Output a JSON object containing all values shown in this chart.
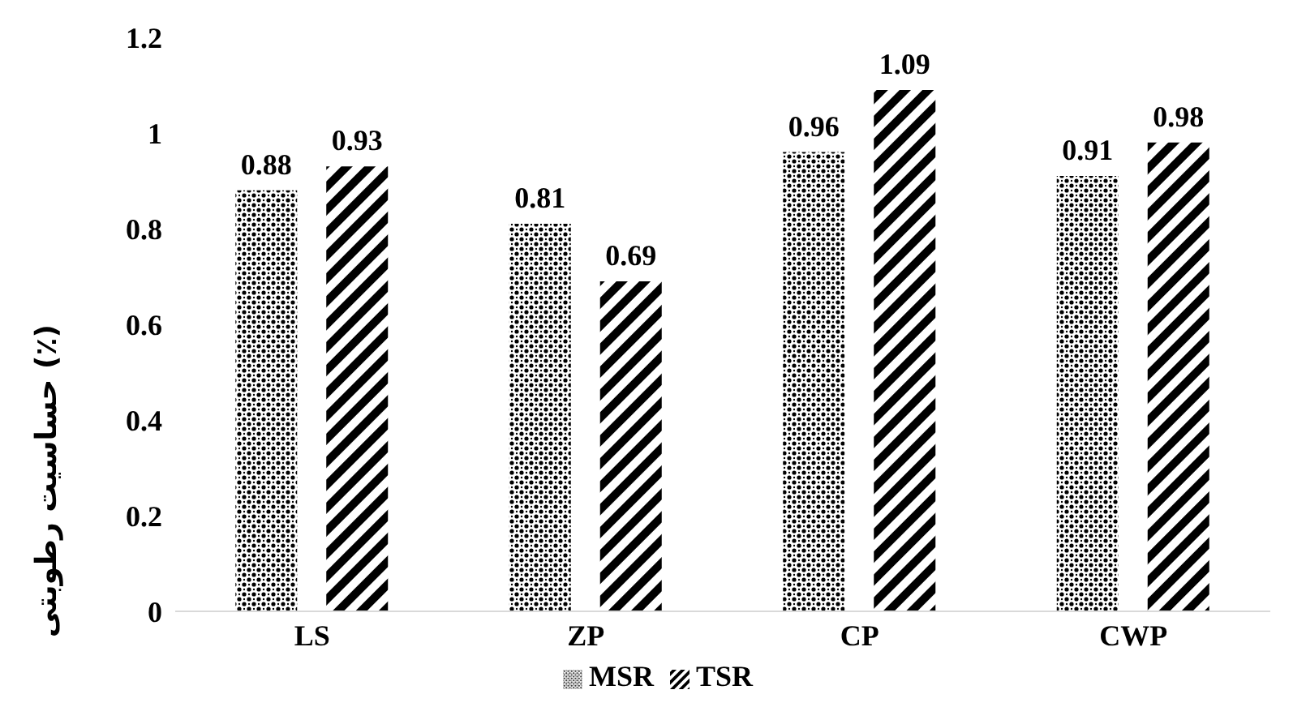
{
  "chart_data": {
    "type": "bar",
    "ylabel": "حساسیت رطوبتی (٪)",
    "categories": [
      "LS",
      "ZP",
      "CP",
      "CWP"
    ],
    "series": [
      {
        "name": "MSR",
        "color": "#000000",
        "values": [
          0.88,
          0.81,
          0.96,
          0.91
        ]
      },
      {
        "name": "TSR",
        "color": "#000000",
        "values": [
          0.93,
          0.69,
          1.09,
          0.98
        ]
      }
    ],
    "ylim": [
      0,
      1.2
    ],
    "yticks": [
      0,
      0.2,
      0.4,
      0.6,
      0.8,
      1,
      1.2
    ],
    "data_labels": true,
    "legend": "bottom",
    "grid": false
  }
}
